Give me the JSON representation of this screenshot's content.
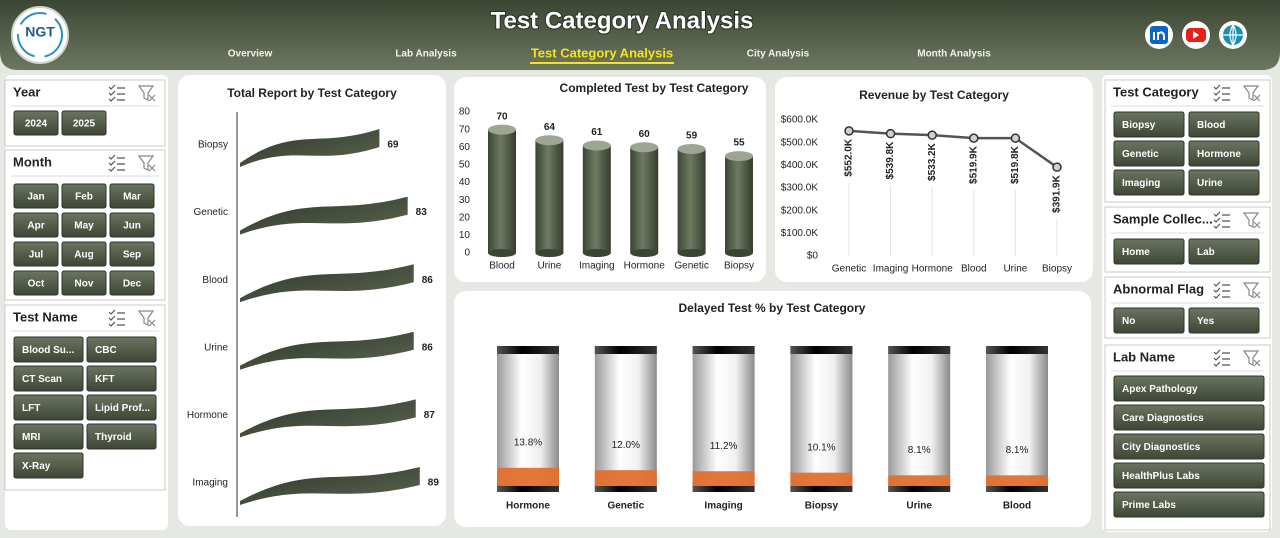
{
  "header": {
    "logo": "NGT",
    "title": "Test Category Analysis",
    "nav": [
      "Overview",
      "Lab Analysis",
      "Test Category Analysis",
      "City Analysis",
      "Month Analysis"
    ]
  },
  "slicers": [
    {
      "title": "Year",
      "items": [
        "2024",
        "2025"
      ]
    },
    {
      "title": "Month",
      "items": [
        "Jan",
        "Feb",
        "Mar",
        "Apr",
        "May",
        "Jun",
        "Jul",
        "Aug",
        "Sep",
        "Oct",
        "Nov",
        "Dec"
      ]
    },
    {
      "title": "Test Name",
      "items": [
        "Blood Su...",
        "CBC",
        "CT Scan",
        "KFT",
        "LFT",
        "Lipid Prof...",
        "MRI",
        "Thyroid",
        "X-Ray"
      ]
    },
    {
      "title": "Test Category",
      "items": [
        "Biopsy",
        "Blood",
        "Genetic",
        "Hormone",
        "Imaging",
        "Urine"
      ]
    },
    {
      "title": "Sample Collec...",
      "items": [
        "Home",
        "Lab"
      ]
    },
    {
      "title": "Abnormal Flag",
      "items": [
        "No",
        "Yes"
      ]
    },
    {
      "title": "Lab Name",
      "items": [
        "Apex Pathology",
        "Care Diagnostics",
        "City Diagnostics",
        "HealthPlus Labs",
        "Prime Labs"
      ]
    }
  ],
  "chart_data": [
    {
      "type": "bar",
      "orientation": "horizontal",
      "title": "Total Report by Test Category",
      "categories": [
        "Biopsy",
        "Genetic",
        "Blood",
        "Urine",
        "Hormone",
        "Imaging"
      ],
      "values": [
        69,
        83,
        86,
        86,
        87,
        89
      ],
      "color": "#3f4737"
    },
    {
      "type": "bar",
      "title": "Completed Test by Test Category",
      "categories": [
        "Blood",
        "Urine",
        "Imaging",
        "Hormone",
        "Genetic",
        "Biopsy"
      ],
      "values": [
        70,
        64,
        61,
        60,
        59,
        55
      ],
      "color": "#4f5a43",
      "ylim": [
        0,
        80
      ],
      "yticks": [
        0,
        10,
        20,
        30,
        40,
        50,
        60,
        70,
        80
      ]
    },
    {
      "type": "line",
      "title": "Revenue by Test Category",
      "categories": [
        "Genetic",
        "Imaging",
        "Hormone",
        "Blood",
        "Urine",
        "Biopsy"
      ],
      "values": [
        552000,
        539800,
        533200,
        519900,
        519800,
        391900
      ],
      "value_labels": [
        "$552.0K",
        "$539.8K",
        "$533.2K",
        "$519.9K",
        "$519.8K",
        "$391.9K"
      ],
      "color": "#555555",
      "ylim": [
        0,
        600000
      ],
      "yticks": [
        {
          "value": 0,
          "label": "$0"
        },
        {
          "value": 100000,
          "label": "$100.0K"
        },
        {
          "value": 200000,
          "label": "$200.0K"
        },
        {
          "value": 300000,
          "label": "$300.0K"
        },
        {
          "value": 400000,
          "label": "$400.0K"
        },
        {
          "value": 500000,
          "label": "$500.0K"
        },
        {
          "value": 600000,
          "label": "$600.0K"
        }
      ]
    },
    {
      "type": "bar",
      "title": "Delayed Test % by Test Category",
      "categories": [
        "Hormone",
        "Genetic",
        "Imaging",
        "Biopsy",
        "Urine",
        "Blood"
      ],
      "values": [
        13.8,
        12.0,
        11.2,
        10.1,
        8.1,
        8.1
      ],
      "value_labels": [
        "13.8%",
        "12.0%",
        "11.2%",
        "10.1%",
        "8.1%",
        "8.1%"
      ],
      "color": "#e2702f"
    }
  ]
}
